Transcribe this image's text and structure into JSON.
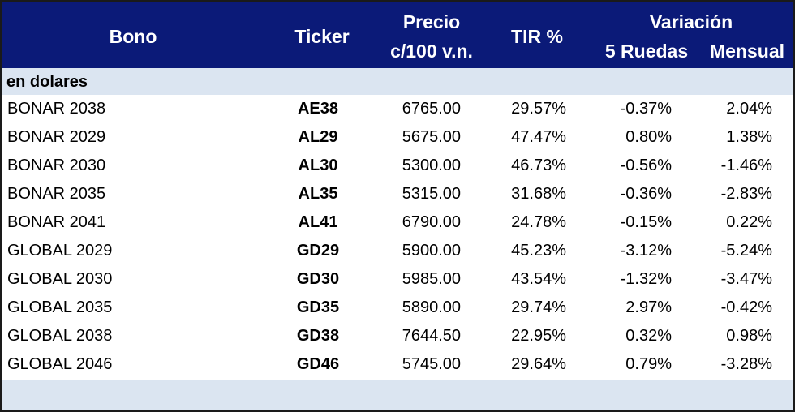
{
  "header": {
    "bono": "Bono",
    "ticker": "Ticker",
    "precio_line1": "Precio",
    "precio_line2": "c/100 v.n.",
    "tir": "TIR %",
    "variacion": "Variación",
    "var_5_ruedas": "5 Ruedas",
    "var_mensual": "Mensual"
  },
  "section_label": "en dolares",
  "rows": [
    {
      "bono": "BONAR 2038",
      "ticker": "AE38",
      "precio": "6765.00",
      "tir": "29.57%",
      "var5": "-0.37%",
      "mensual": "2.04%"
    },
    {
      "bono": "BONAR 2029",
      "ticker": "AL29",
      "precio": "5675.00",
      "tir": "47.47%",
      "var5": "0.80%",
      "mensual": "1.38%"
    },
    {
      "bono": "BONAR 2030",
      "ticker": "AL30",
      "precio": "5300.00",
      "tir": "46.73%",
      "var5": "-0.56%",
      "mensual": "-1.46%"
    },
    {
      "bono": "BONAR 2035",
      "ticker": "AL35",
      "precio": "5315.00",
      "tir": "31.68%",
      "var5": "-0.36%",
      "mensual": "-2.83%"
    },
    {
      "bono": "BONAR 2041",
      "ticker": "AL41",
      "precio": "6790.00",
      "tir": "24.78%",
      "var5": "-0.15%",
      "mensual": "0.22%"
    },
    {
      "bono": "GLOBAL 2029",
      "ticker": "GD29",
      "precio": "5900.00",
      "tir": "45.23%",
      "var5": "-3.12%",
      "mensual": "-5.24%"
    },
    {
      "bono": "GLOBAL 2030",
      "ticker": "GD30",
      "precio": "5985.00",
      "tir": "43.54%",
      "var5": "-1.32%",
      "mensual": "-3.47%"
    },
    {
      "bono": "GLOBAL 2035",
      "ticker": "GD35",
      "precio": "5890.00",
      "tir": "29.74%",
      "var5": "2.97%",
      "mensual": "-0.42%"
    },
    {
      "bono": "GLOBAL 2038",
      "ticker": "GD38",
      "precio": "7644.50",
      "tir": "22.95%",
      "var5": "0.32%",
      "mensual": "0.98%"
    },
    {
      "bono": "GLOBAL 2046",
      "ticker": "GD46",
      "precio": "5745.00",
      "tir": "29.64%",
      "var5": "0.79%",
      "mensual": "-3.28%"
    }
  ],
  "colors": {
    "header_bg": "#0b1a78",
    "band_bg": "#dbe5f1",
    "text": "#000000"
  }
}
